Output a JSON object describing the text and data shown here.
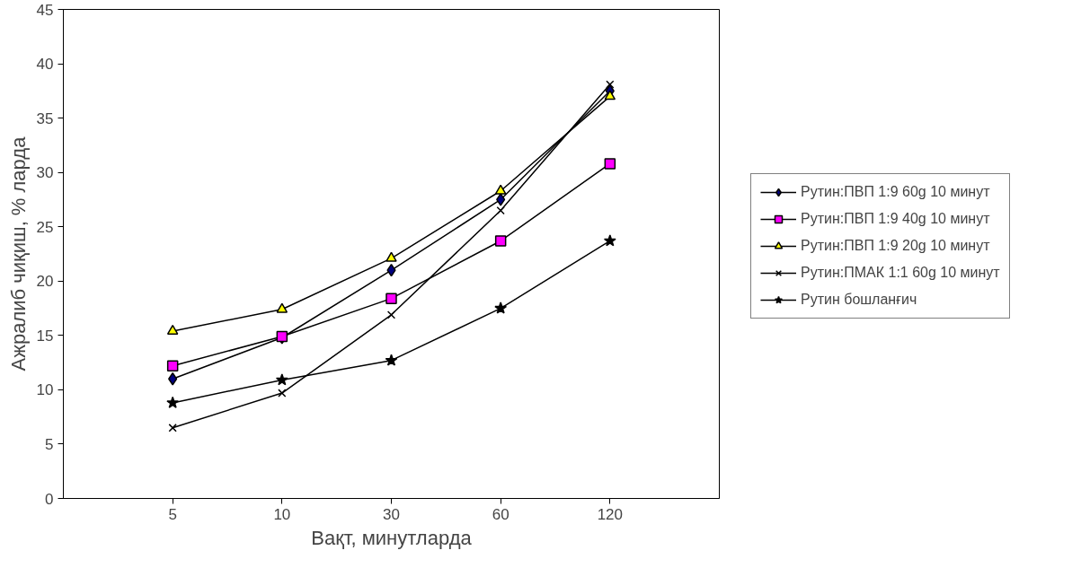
{
  "chart_data": {
    "type": "line",
    "xlabel": "Вақт, минутларда",
    "ylabel": "Ажралиб чиқиш, % ларда",
    "categories": [
      "5",
      "10",
      "30",
      "60",
      "120"
    ],
    "ylim": [
      0,
      45
    ],
    "yticks": [
      0,
      5,
      10,
      15,
      20,
      25,
      30,
      35,
      40,
      45
    ],
    "grid": false,
    "legend": "right",
    "series": [
      {
        "name": "Рутин:ПВП 1:9 60g 10 минут",
        "color": "#000080",
        "marker": "diamond",
        "values": [
          11,
          14.8,
          21,
          27.5,
          37.5
        ]
      },
      {
        "name": "Рутин:ПВП 1:9 40g 10 минут",
        "color": "#ff00ff",
        "marker": "square",
        "values": [
          12.2,
          14.9,
          18.4,
          23.7,
          30.8
        ]
      },
      {
        "name": "Рутин:ПВП 1:9 20g 10 минут",
        "color": "#ffff00",
        "marker": "triangle",
        "values": [
          15.4,
          17.4,
          22.1,
          28.3,
          37
        ]
      },
      {
        "name": "Рутин:ПМАК 1:1 60g 10 минут",
        "color": "#000000",
        "marker": "cross",
        "values": [
          6.5,
          9.7,
          16.9,
          26.5,
          38.1
        ]
      },
      {
        "name": "Рутин бошланғич",
        "color": "#000000",
        "marker": "star",
        "values": [
          8.8,
          10.9,
          12.7,
          17.5,
          23.7
        ]
      }
    ]
  }
}
